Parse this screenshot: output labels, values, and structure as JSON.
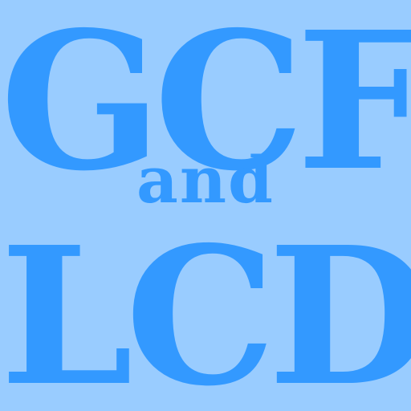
{
  "colors": {
    "background": "#99ccff",
    "text": "#3399ff"
  },
  "title": {
    "line1": "GCF",
    "line2": "and",
    "line3": "LCD"
  }
}
